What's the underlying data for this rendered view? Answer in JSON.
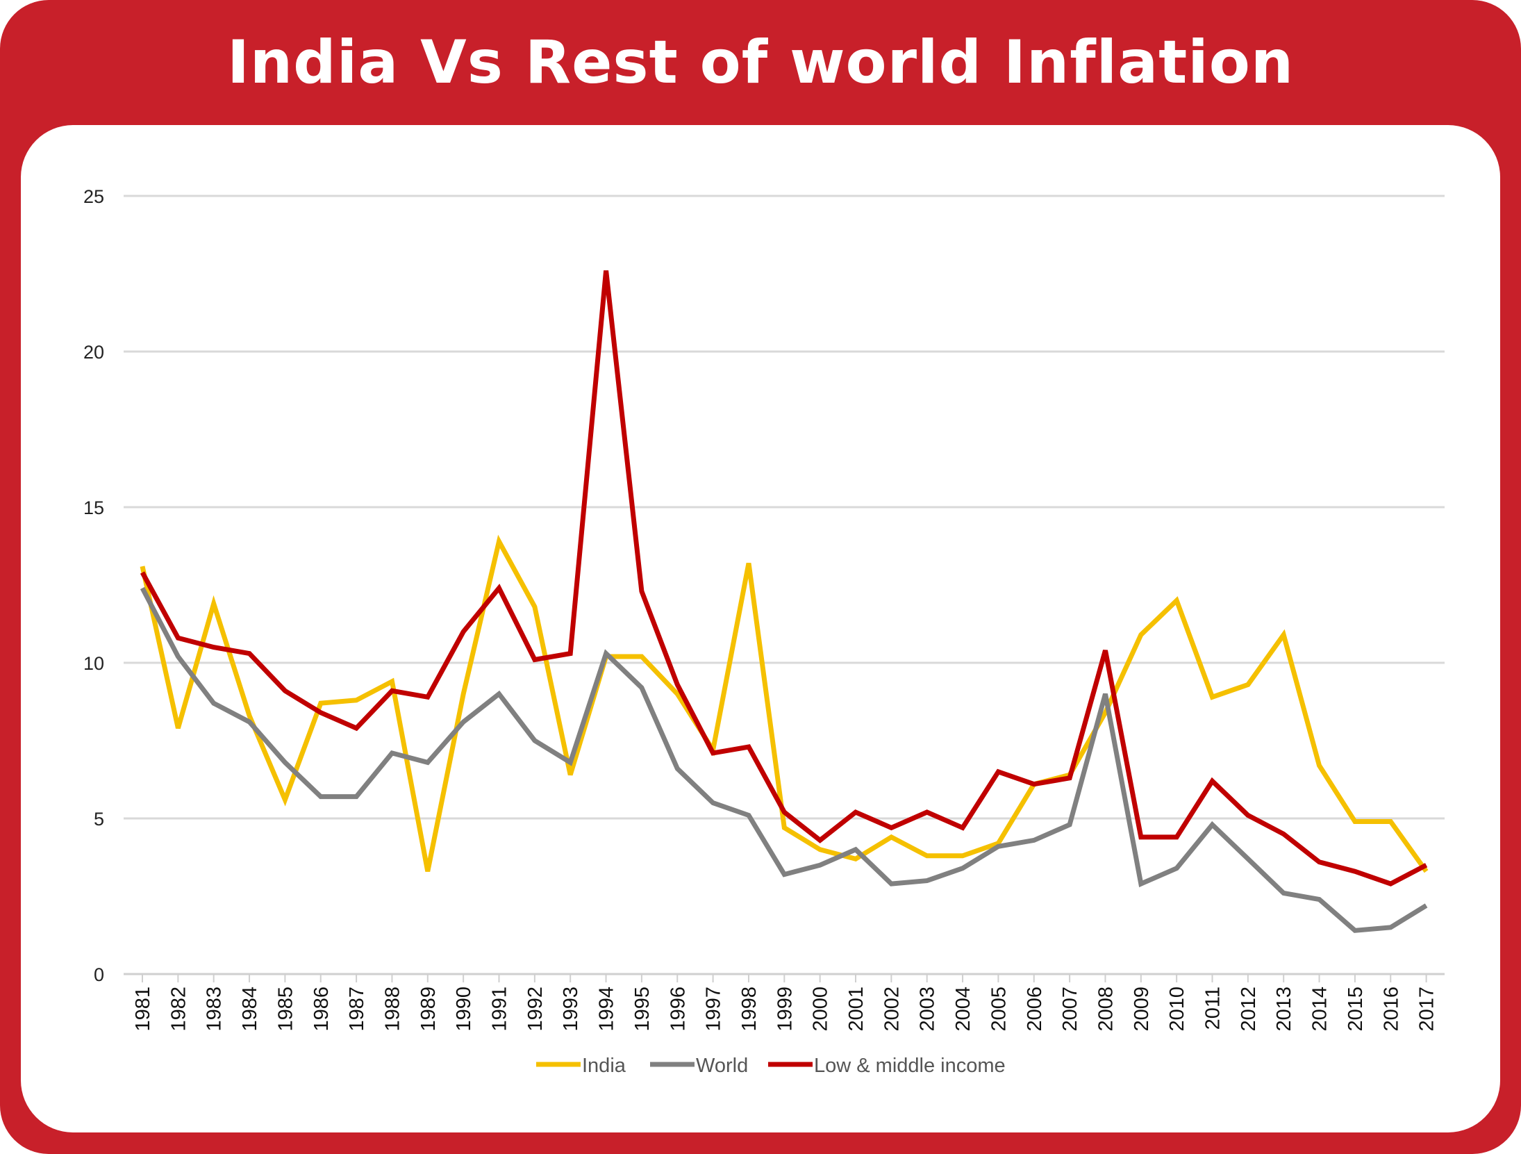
{
  "title": "India Vs Rest of world Inflation",
  "colors": {
    "frame": "#c8202a",
    "india": "#f5c000",
    "world": "#808080",
    "low_middle": "#c00000",
    "grid": "#d9d9d9"
  },
  "chart_data": {
    "type": "line",
    "title": "India Vs Rest of world Inflation",
    "xlabel": "",
    "ylabel": "",
    "ylim": [
      0,
      25
    ],
    "yticks": [
      0,
      5,
      10,
      15,
      20,
      25
    ],
    "grid": true,
    "legend_position": "bottom",
    "x": [
      "1981",
      "1982",
      "1983",
      "1984",
      "1985",
      "1986",
      "1987",
      "1988",
      "1989",
      "1990",
      "1991",
      "1992",
      "1993",
      "1994",
      "1995",
      "1996",
      "1997",
      "1998",
      "1999",
      "2000",
      "2001",
      "2002",
      "2003",
      "2004",
      "2005",
      "2006",
      "2007",
      "2008",
      "2009",
      "2010",
      "2011",
      "2012",
      "2013",
      "2014",
      "2015",
      "2016",
      "2017"
    ],
    "series": [
      {
        "name": "India",
        "color": "#f5c000",
        "values": [
          13.1,
          7.9,
          11.9,
          8.3,
          5.6,
          8.7,
          8.8,
          9.4,
          3.3,
          9.0,
          13.9,
          11.8,
          6.4,
          10.2,
          10.2,
          9.0,
          7.2,
          13.2,
          4.7,
          4.0,
          3.7,
          4.4,
          3.8,
          3.8,
          4.2,
          6.1,
          6.4,
          8.4,
          10.9,
          12.0,
          8.9,
          9.3,
          10.9,
          6.7,
          4.9,
          4.9,
          3.3
        ]
      },
      {
        "name": "World",
        "color": "#808080",
        "values": [
          12.4,
          10.2,
          8.7,
          8.1,
          6.8,
          5.7,
          5.7,
          7.1,
          6.8,
          8.1,
          9.0,
          7.5,
          6.8,
          10.3,
          9.2,
          6.6,
          5.5,
          5.1,
          3.2,
          3.5,
          4.0,
          2.9,
          3.0,
          3.4,
          4.1,
          4.3,
          4.8,
          9.0,
          2.9,
          3.4,
          4.8,
          3.7,
          2.6,
          2.4,
          1.4,
          1.5,
          2.2
        ]
      },
      {
        "name": "Low & middle income",
        "color": "#c00000",
        "values": [
          12.9,
          10.8,
          10.5,
          10.3,
          9.1,
          8.4,
          7.9,
          9.1,
          8.9,
          11.0,
          12.4,
          10.1,
          10.3,
          22.6,
          12.3,
          9.3,
          7.1,
          7.3,
          5.2,
          4.3,
          5.2,
          4.7,
          5.2,
          4.7,
          6.5,
          6.1,
          6.3,
          10.4,
          4.4,
          4.4,
          6.2,
          5.1,
          4.5,
          3.6,
          3.3,
          2.9,
          3.5
        ]
      }
    ]
  }
}
